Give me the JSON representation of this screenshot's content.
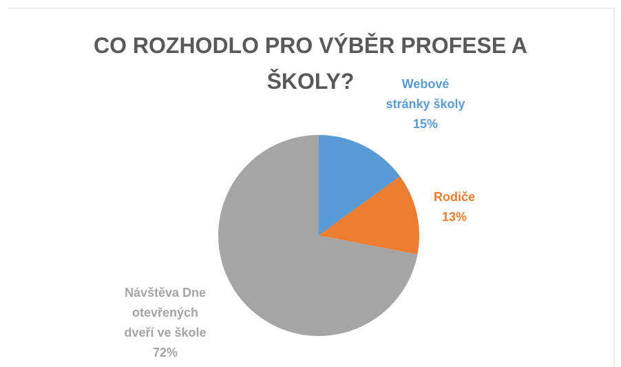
{
  "chart_data": {
    "type": "pie",
    "title": "CO ROZHODLO PRO VÝBĚR PROFESE A ŠKOLY?",
    "categories": [
      "Webové stránky školy",
      "Rodiče",
      "Návštěva Dne otevřených dveří ve škole"
    ],
    "values": [
      15,
      13,
      72
    ],
    "value_labels": [
      "15%",
      "13%",
      "72%"
    ],
    "colors": [
      "#5b9bd5",
      "#ed7d31",
      "#a5a5a5"
    ]
  }
}
